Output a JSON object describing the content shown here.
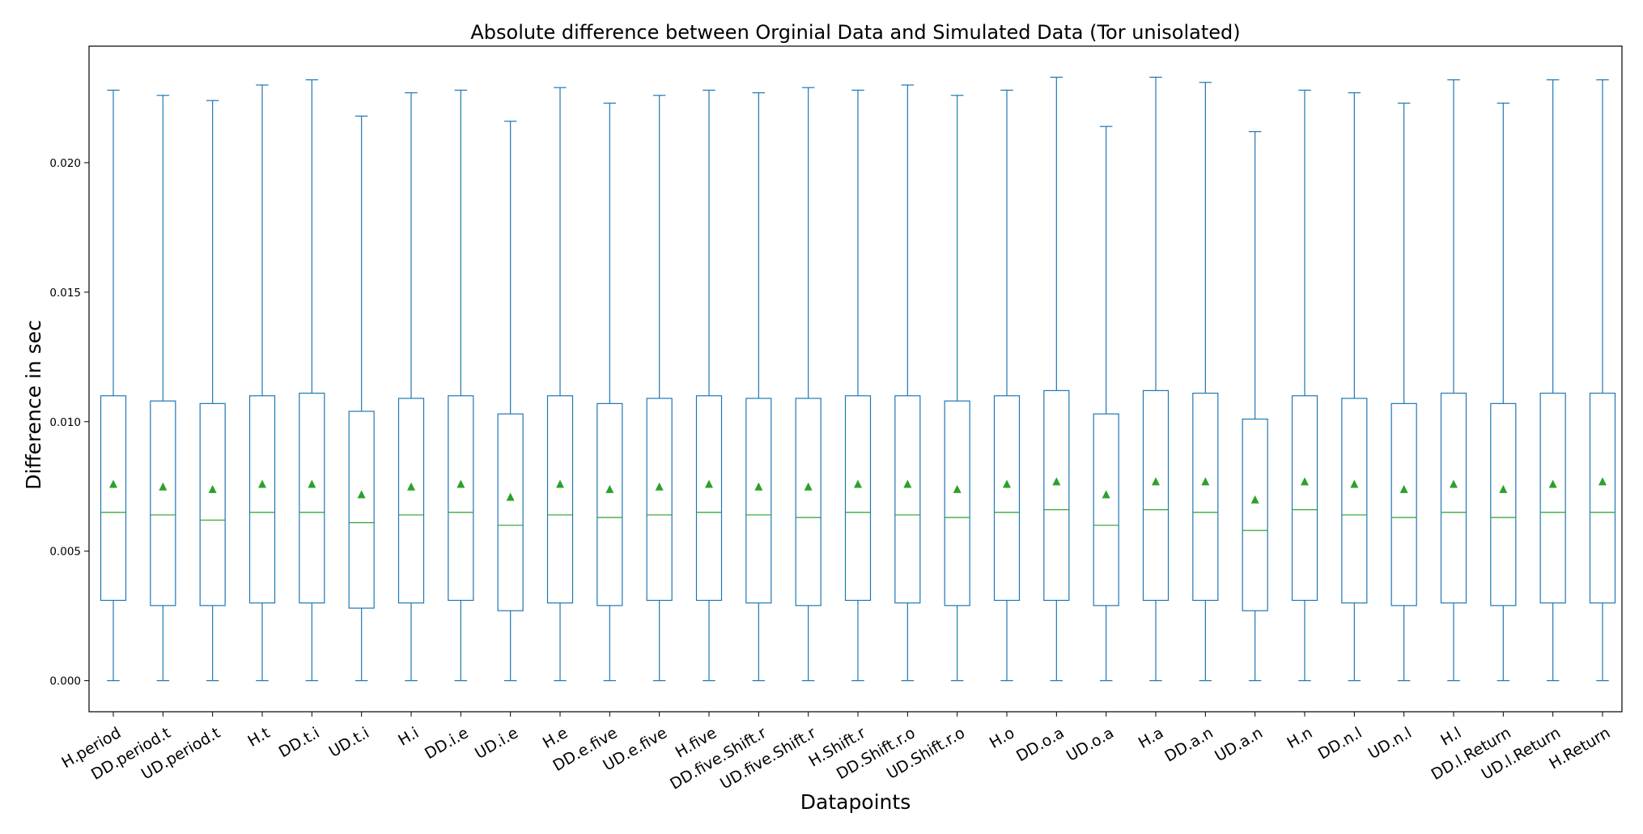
{
  "chart_data": {
    "type": "box",
    "title": "Absolute difference between Orginial Data and Simulated Data (Tor unisolated)",
    "xlabel": "Datapoints",
    "ylabel": "Difference in sec",
    "ylim": [
      -0.0012,
      0.0245
    ],
    "yticks": [
      "0.000",
      "0.005",
      "0.010",
      "0.015",
      "0.020"
    ],
    "ytick_values": [
      0.0,
      0.005,
      0.01,
      0.015,
      0.02
    ],
    "grid": false,
    "categories": [
      "H.period",
      "DD.period.t",
      "UD.period.t",
      "H.t",
      "DD.t.i",
      "UD.t.i",
      "H.i",
      "DD.i.e",
      "UD.i.e",
      "H.e",
      "DD.e.five",
      "UD.e.five",
      "H.five",
      "DD.five.Shift.r",
      "UD.five.Shift.r",
      "H.Shift.r",
      "DD.Shift.r.o",
      "UD.Shift.r.o",
      "H.o",
      "DD.o.a",
      "UD.o.a",
      "H.a",
      "DD.a.n",
      "UD.a.n",
      "H.n",
      "DD.n.l",
      "UD.n.l",
      "H.l",
      "DD.l.Return",
      "UD.l.Return",
      "H.Return"
    ],
    "whisker_low": [
      0,
      0,
      0,
      0,
      0,
      0,
      0,
      0,
      0,
      0,
      0,
      0,
      0,
      0,
      0,
      0,
      0,
      0,
      0,
      0,
      0,
      0,
      0,
      0,
      0,
      0,
      0,
      0,
      0,
      0,
      0
    ],
    "q1": [
      0.0031,
      0.0029,
      0.0029,
      0.003,
      0.003,
      0.0028,
      0.003,
      0.0031,
      0.0027,
      0.003,
      0.0029,
      0.0031,
      0.0031,
      0.003,
      0.0029,
      0.0031,
      0.003,
      0.0029,
      0.0031,
      0.0031,
      0.0029,
      0.0031,
      0.0031,
      0.0027,
      0.0031,
      0.003,
      0.0029,
      0.003,
      0.0029,
      0.003,
      0.003
    ],
    "median": [
      0.0065,
      0.0064,
      0.0062,
      0.0065,
      0.0065,
      0.0061,
      0.0064,
      0.0065,
      0.006,
      0.0064,
      0.0063,
      0.0064,
      0.0065,
      0.0064,
      0.0063,
      0.0065,
      0.0064,
      0.0063,
      0.0065,
      0.0066,
      0.006,
      0.0066,
      0.0065,
      0.0058,
      0.0066,
      0.0064,
      0.0063,
      0.0065,
      0.0063,
      0.0065,
      0.0065
    ],
    "mean": [
      0.0076,
      0.0075,
      0.0074,
      0.0076,
      0.0076,
      0.0072,
      0.0075,
      0.0076,
      0.0071,
      0.0076,
      0.0074,
      0.0075,
      0.0076,
      0.0075,
      0.0075,
      0.0076,
      0.0076,
      0.0074,
      0.0076,
      0.0077,
      0.0072,
      0.0077,
      0.0077,
      0.007,
      0.0077,
      0.0076,
      0.0074,
      0.0076,
      0.0074,
      0.0076,
      0.0077
    ],
    "q3": [
      0.011,
      0.0108,
      0.0107,
      0.011,
      0.0111,
      0.0104,
      0.0109,
      0.011,
      0.0103,
      0.011,
      0.0107,
      0.0109,
      0.011,
      0.0109,
      0.0109,
      0.011,
      0.011,
      0.0108,
      0.011,
      0.0112,
      0.0103,
      0.0112,
      0.0111,
      0.0101,
      0.011,
      0.0109,
      0.0107,
      0.0111,
      0.0107,
      0.0111,
      0.0111
    ],
    "whisker_high": [
      0.0228,
      0.0226,
      0.0224,
      0.023,
      0.0232,
      0.0218,
      0.0227,
      0.0228,
      0.0216,
      0.0229,
      0.0223,
      0.0226,
      0.0228,
      0.0227,
      0.0229,
      0.0228,
      0.023,
      0.0226,
      0.0228,
      0.0233,
      0.0214,
      0.0233,
      0.0231,
      0.0212,
      0.0228,
      0.0227,
      0.0223,
      0.0232,
      0.0223,
      0.0232,
      0.0232
    ],
    "colors": {
      "box": "#1f77b4",
      "median": "#2ca02c",
      "mean_marker": "#2ca02c",
      "axes": "#000000"
    }
  }
}
